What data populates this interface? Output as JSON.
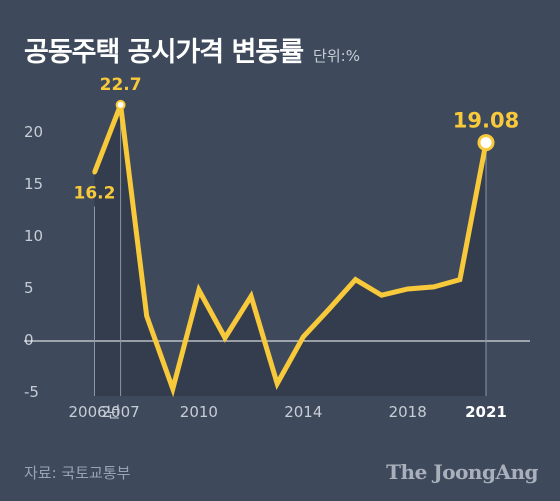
{
  "header": {
    "title": "공동주택 공시가격 변동률",
    "unit": "단위:%"
  },
  "footer": {
    "source": "자료: 국토교통부",
    "brand": "The JoongAng"
  },
  "colors": {
    "background": "#3e4a5c",
    "line": "#f8c93a",
    "area": "#333d4d",
    "axis": "#c7ccd5",
    "grid": "#8c96a6"
  },
  "chart_data": {
    "type": "line",
    "title": "공동주택 공시가격 변동률",
    "ylabel": "단위:%",
    "ylim": [
      -5,
      20
    ],
    "yticks": [
      -5,
      0,
      5,
      10,
      15,
      20
    ],
    "x_tick_labels": [
      {
        "year": 2006,
        "label": "2006년"
      },
      {
        "year": 2007,
        "label": "2007"
      },
      {
        "year": 2010,
        "label": "2010"
      },
      {
        "year": 2014,
        "label": "2014"
      },
      {
        "year": 2018,
        "label": "2018"
      },
      {
        "year": 2021,
        "label": "2021"
      }
    ],
    "series": [
      {
        "x": [
          2006,
          2007,
          2008,
          2009,
          2010,
          2011,
          2012,
          2013,
          2014,
          2015,
          2016,
          2017,
          2018,
          2019,
          2020,
          2021
        ],
        "values": [
          16.2,
          22.7,
          2.4,
          -4.6,
          4.9,
          0.3,
          4.3,
          -4.1,
          0.4,
          3.1,
          5.9,
          4.4,
          5.0,
          5.2,
          5.9,
          19.08
        ]
      }
    ],
    "data_labels": [
      {
        "year": 2006,
        "text": "16.2"
      },
      {
        "year": 2007,
        "text": "22.7"
      },
      {
        "year": 2021,
        "text": "19.08"
      }
    ],
    "highlight_ticks": [
      "2021"
    ],
    "grid": false
  }
}
